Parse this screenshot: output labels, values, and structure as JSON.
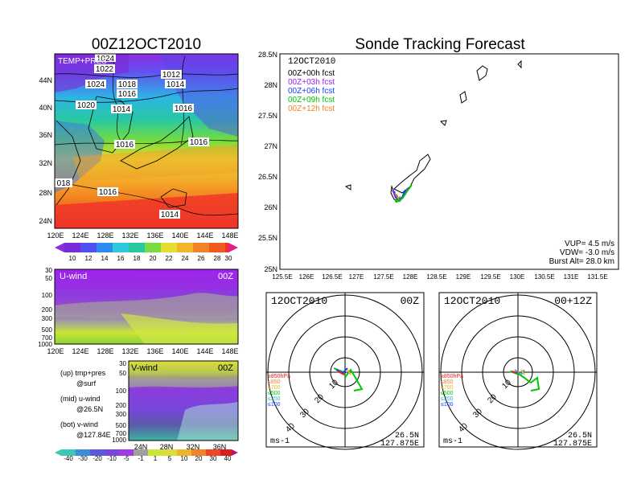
{
  "left_title": "00Z12OCT2010",
  "right_title": "Sonde Tracking Forecast",
  "map": {
    "label": "TEMP+PRES",
    "isobars": [
      "1024",
      "1022",
      "1012",
      "1024",
      "1018",
      "1014",
      "1016",
      "1020",
      "1014",
      "1016",
      "1016",
      "1016",
      "018",
      "1016",
      "1014"
    ],
    "lat_ticks": [
      "44N",
      "40N",
      "36N",
      "32N",
      "28N",
      "24N"
    ],
    "lon_ticks": [
      "120E",
      "124E",
      "128E",
      "132E",
      "136E",
      "140E",
      "144E",
      "148E"
    ],
    "colorbar": [
      "10",
      "12",
      "14",
      "16",
      "18",
      "20",
      "22",
      "24",
      "26",
      "28",
      "30"
    ]
  },
  "uwind": {
    "label": "U-wind",
    "time": "00Z",
    "levels": [
      "30",
      "50",
      "100",
      "200",
      "300",
      "500",
      "700",
      "1000"
    ],
    "lon_ticks": [
      "120E",
      "124E",
      "128E",
      "132E",
      "136E",
      "140E",
      "144E",
      "148E"
    ]
  },
  "vwind": {
    "label": "V-wind",
    "time": "00Z",
    "levels": [
      "30",
      "50",
      "100",
      "200",
      "300",
      "500",
      "700",
      "1000"
    ],
    "lat_ticks": [
      "24N",
      "28N",
      "32N",
      "36N"
    ]
  },
  "legend_notes": [
    {
      "a": "(up) tmp+pres",
      "b": "@surf"
    },
    {
      "a": "(mid) u-wind",
      "b": "@26.5N"
    },
    {
      "a": "(bot) v-wind",
      "b": "@127.84E"
    }
  ],
  "wind_colorbar": [
    "-40",
    "-30",
    "-20",
    "-10",
    "-5",
    "-1",
    "1",
    "5",
    "10",
    "20",
    "30",
    "40"
  ],
  "track": {
    "date": "12OCT2010",
    "legend": [
      {
        "label": "00Z+00h fcst",
        "color": "#000000"
      },
      {
        "label": "00Z+03h fcst",
        "color": "#a020f0"
      },
      {
        "label": "00Z+06h fcst",
        "color": "#1e3cff"
      },
      {
        "label": "00Z+09h fcst",
        "color": "#00c800"
      },
      {
        "label": "00Z+12h fcst",
        "color": "#f08228"
      }
    ],
    "lat_ticks": [
      "28.5N",
      "28N",
      "27.5N",
      "27N",
      "26.5N",
      "26N",
      "25.5N",
      "25N"
    ],
    "lon_ticks": [
      "125.5E",
      "126E",
      "126.5E",
      "127E",
      "127.5E",
      "128E",
      "128.5E",
      "129E",
      "129.5E",
      "130E",
      "130.5E",
      "131E",
      "131.5E"
    ],
    "info": [
      "VUP= 4.5 m/s",
      "VDW= -3.0 m/s",
      "Burst Alt= 28.0 km"
    ]
  },
  "hodo1": {
    "date": "12OCT2010",
    "time": "00Z",
    "unit": "ms-1",
    "lat": "26.5N",
    "lon": "127.875E",
    "rings": [
      "10",
      "20",
      "30",
      "40"
    ],
    "levels": [
      "≥850hPa",
      "≤850",
      "≤700",
      "≤500",
      "≤250",
      "≤100"
    ]
  },
  "hodo2": {
    "date": "12OCT2010",
    "time": "00+12Z",
    "unit": "ms-1",
    "lat": "26.5N",
    "lon": "127.875E",
    "rings": [
      "10",
      "20",
      "30",
      "40"
    ],
    "levels": [
      "≥850hPa",
      "≤850",
      "≤700",
      "≤500",
      "≤250",
      "≤100"
    ]
  },
  "chart_data": [
    {
      "type": "heatmap",
      "title": "00Z12OCT2010",
      "xlabel": "",
      "ylabel": "",
      "xlim": [
        120,
        149
      ],
      "ylim": [
        22,
        47
      ],
      "colorbar_min": 10,
      "colorbar_max": 30
    },
    {
      "type": "heatmap",
      "title": "U-wind",
      "xlim": [
        120,
        149
      ],
      "ylim": [
        1000,
        30
      ]
    },
    {
      "type": "heatmap",
      "title": "V-wind",
      "xlim": [
        22,
        38
      ],
      "ylim": [
        1000,
        30
      ]
    },
    {
      "type": "line",
      "title": "Sonde Tracking Forecast",
      "xlim": [
        125.5,
        131.5
      ],
      "ylim": [
        25,
        28.5
      ],
      "series": [
        {
          "name": "00Z+00h fcst",
          "points": [
            [
              127.6,
              26.2
            ],
            [
              127.65,
              26.15
            ],
            [
              127.7,
              26.1
            ]
          ]
        }
      ]
    }
  ]
}
